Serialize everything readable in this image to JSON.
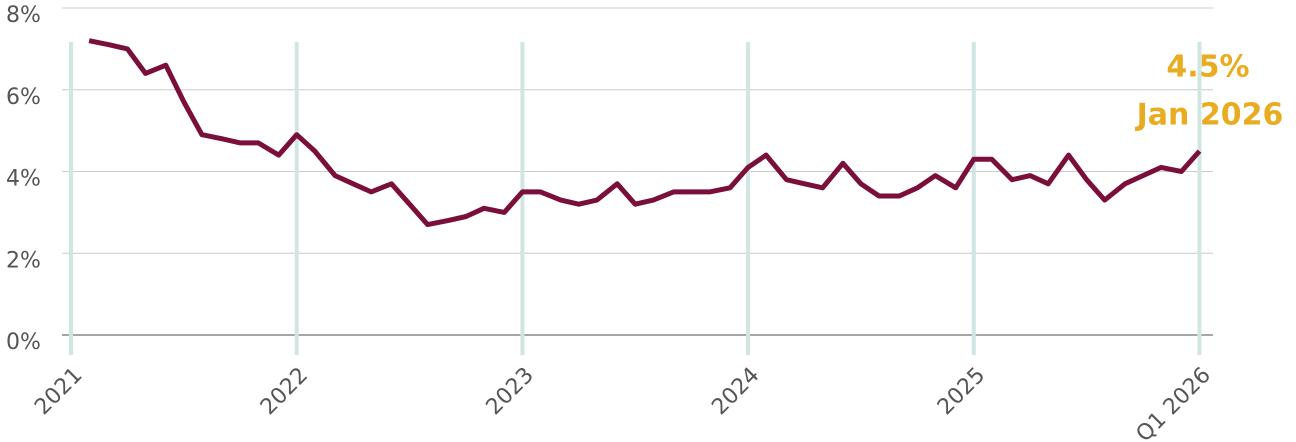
{
  "chart_data": {
    "type": "line",
    "x": [
      2021.08,
      2021.17,
      2021.25,
      2021.33,
      2021.42,
      2021.5,
      2021.58,
      2021.67,
      2021.75,
      2021.83,
      2021.92,
      2022.0,
      2022.08,
      2022.17,
      2022.25,
      2022.33,
      2022.42,
      2022.5,
      2022.58,
      2022.67,
      2022.75,
      2022.83,
      2022.92,
      2023.0,
      2023.08,
      2023.17,
      2023.25,
      2023.33,
      2023.42,
      2023.5,
      2023.58,
      2023.67,
      2023.75,
      2023.83,
      2023.92,
      2024.0,
      2024.08,
      2024.17,
      2024.25,
      2024.33,
      2024.42,
      2024.5,
      2024.58,
      2024.67,
      2024.75,
      2024.83,
      2024.92,
      2025.0,
      2025.08,
      2025.17,
      2025.25,
      2025.33,
      2025.42,
      2025.5,
      2025.58,
      2025.67,
      2025.75,
      2025.83,
      2025.92,
      2026.0
    ],
    "series": [
      {
        "color": "#7a0f3c",
        "values": [
          7.2,
          7.1,
          7.0,
          6.4,
          6.6,
          5.7,
          4.9,
          4.8,
          4.7,
          4.7,
          4.4,
          4.9,
          4.5,
          3.9,
          3.7,
          3.5,
          3.7,
          3.2,
          2.7,
          2.8,
          2.9,
          3.1,
          3.0,
          3.5,
          3.5,
          3.3,
          3.2,
          3.3,
          3.7,
          3.2,
          3.3,
          3.5,
          3.5,
          3.5,
          3.6,
          4.1,
          4.4,
          3.8,
          3.7,
          3.6,
          4.2,
          3.7,
          3.4,
          3.4,
          3.6,
          3.9,
          3.6,
          4.3,
          4.3,
          3.8,
          3.9,
          3.7,
          4.4,
          3.8,
          3.3,
          3.7,
          3.9,
          4.1,
          4.0,
          4.5
        ]
      }
    ],
    "xlim": [
      2020.96,
      2026.06
    ],
    "xticks": [
      2021,
      2022,
      2023,
      2024,
      2025,
      {
        "value": 2026,
        "label": "Q1 2026"
      }
    ],
    "ylim": [
      0,
      8
    ],
    "yticks": [
      {
        "value": 0,
        "label": "0%"
      },
      {
        "value": 2,
        "label": "2%"
      },
      {
        "value": 4,
        "label": "4%"
      },
      {
        "value": 6,
        "label": "6%"
      },
      {
        "value": 8,
        "label": "8%"
      }
    ],
    "annotations": [
      "4.5%",
      "Jan 2026"
    ],
    "annotation_color": "#e9ab1f",
    "grid": true
  }
}
